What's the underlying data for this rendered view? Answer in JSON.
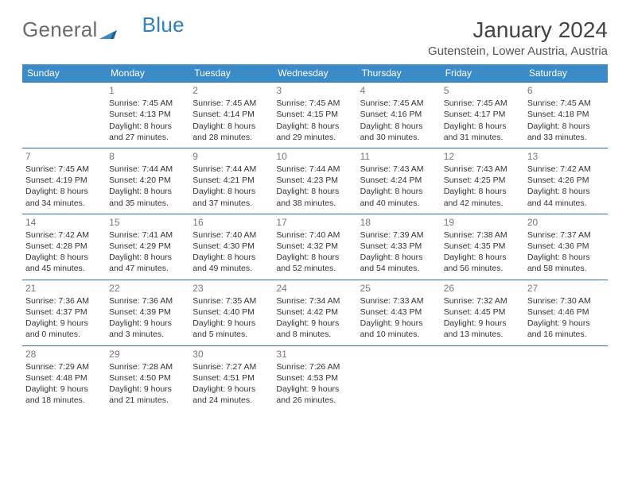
{
  "brand": {
    "word1": "General",
    "word2": "Blue",
    "color_gray": "#6b6b6b",
    "color_blue": "#2f7fbf",
    "mark_fill": "#1f5f96"
  },
  "title": {
    "month": "January 2024",
    "location": "Gutenstein, Lower Austria, Austria",
    "title_fontsize": 28,
    "location_fontsize": 15,
    "title_color": "#444444",
    "location_color": "#555555"
  },
  "calendar": {
    "header_bg": "#3b8bc9",
    "header_fg": "#ffffff",
    "row_border_color": "#2b6ea8",
    "cell_fontsize": 10.5,
    "daynum_color": "#777777",
    "days": [
      "Sunday",
      "Monday",
      "Tuesday",
      "Wednesday",
      "Thursday",
      "Friday",
      "Saturday"
    ],
    "weeks": [
      [
        {
          "num": "",
          "text": ""
        },
        {
          "num": "1",
          "text": "Sunrise: 7:45 AM\nSunset: 4:13 PM\nDaylight: 8 hours and 27 minutes."
        },
        {
          "num": "2",
          "text": "Sunrise: 7:45 AM\nSunset: 4:14 PM\nDaylight: 8 hours and 28 minutes."
        },
        {
          "num": "3",
          "text": "Sunrise: 7:45 AM\nSunset: 4:15 PM\nDaylight: 8 hours and 29 minutes."
        },
        {
          "num": "4",
          "text": "Sunrise: 7:45 AM\nSunset: 4:16 PM\nDaylight: 8 hours and 30 minutes."
        },
        {
          "num": "5",
          "text": "Sunrise: 7:45 AM\nSunset: 4:17 PM\nDaylight: 8 hours and 31 minutes."
        },
        {
          "num": "6",
          "text": "Sunrise: 7:45 AM\nSunset: 4:18 PM\nDaylight: 8 hours and 33 minutes."
        }
      ],
      [
        {
          "num": "7",
          "text": "Sunrise: 7:45 AM\nSunset: 4:19 PM\nDaylight: 8 hours and 34 minutes."
        },
        {
          "num": "8",
          "text": "Sunrise: 7:44 AM\nSunset: 4:20 PM\nDaylight: 8 hours and 35 minutes."
        },
        {
          "num": "9",
          "text": "Sunrise: 7:44 AM\nSunset: 4:21 PM\nDaylight: 8 hours and 37 minutes."
        },
        {
          "num": "10",
          "text": "Sunrise: 7:44 AM\nSunset: 4:23 PM\nDaylight: 8 hours and 38 minutes."
        },
        {
          "num": "11",
          "text": "Sunrise: 7:43 AM\nSunset: 4:24 PM\nDaylight: 8 hours and 40 minutes."
        },
        {
          "num": "12",
          "text": "Sunrise: 7:43 AM\nSunset: 4:25 PM\nDaylight: 8 hours and 42 minutes."
        },
        {
          "num": "13",
          "text": "Sunrise: 7:42 AM\nSunset: 4:26 PM\nDaylight: 8 hours and 44 minutes."
        }
      ],
      [
        {
          "num": "14",
          "text": "Sunrise: 7:42 AM\nSunset: 4:28 PM\nDaylight: 8 hours and 45 minutes."
        },
        {
          "num": "15",
          "text": "Sunrise: 7:41 AM\nSunset: 4:29 PM\nDaylight: 8 hours and 47 minutes."
        },
        {
          "num": "16",
          "text": "Sunrise: 7:40 AM\nSunset: 4:30 PM\nDaylight: 8 hours and 49 minutes."
        },
        {
          "num": "17",
          "text": "Sunrise: 7:40 AM\nSunset: 4:32 PM\nDaylight: 8 hours and 52 minutes."
        },
        {
          "num": "18",
          "text": "Sunrise: 7:39 AM\nSunset: 4:33 PM\nDaylight: 8 hours and 54 minutes."
        },
        {
          "num": "19",
          "text": "Sunrise: 7:38 AM\nSunset: 4:35 PM\nDaylight: 8 hours and 56 minutes."
        },
        {
          "num": "20",
          "text": "Sunrise: 7:37 AM\nSunset: 4:36 PM\nDaylight: 8 hours and 58 minutes."
        }
      ],
      [
        {
          "num": "21",
          "text": "Sunrise: 7:36 AM\nSunset: 4:37 PM\nDaylight: 9 hours and 0 minutes."
        },
        {
          "num": "22",
          "text": "Sunrise: 7:36 AM\nSunset: 4:39 PM\nDaylight: 9 hours and 3 minutes."
        },
        {
          "num": "23",
          "text": "Sunrise: 7:35 AM\nSunset: 4:40 PM\nDaylight: 9 hours and 5 minutes."
        },
        {
          "num": "24",
          "text": "Sunrise: 7:34 AM\nSunset: 4:42 PM\nDaylight: 9 hours and 8 minutes."
        },
        {
          "num": "25",
          "text": "Sunrise: 7:33 AM\nSunset: 4:43 PM\nDaylight: 9 hours and 10 minutes."
        },
        {
          "num": "26",
          "text": "Sunrise: 7:32 AM\nSunset: 4:45 PM\nDaylight: 9 hours and 13 minutes."
        },
        {
          "num": "27",
          "text": "Sunrise: 7:30 AM\nSunset: 4:46 PM\nDaylight: 9 hours and 16 minutes."
        }
      ],
      [
        {
          "num": "28",
          "text": "Sunrise: 7:29 AM\nSunset: 4:48 PM\nDaylight: 9 hours and 18 minutes."
        },
        {
          "num": "29",
          "text": "Sunrise: 7:28 AM\nSunset: 4:50 PM\nDaylight: 9 hours and 21 minutes."
        },
        {
          "num": "30",
          "text": "Sunrise: 7:27 AM\nSunset: 4:51 PM\nDaylight: 9 hours and 24 minutes."
        },
        {
          "num": "31",
          "text": "Sunrise: 7:26 AM\nSunset: 4:53 PM\nDaylight: 9 hours and 26 minutes."
        },
        {
          "num": "",
          "text": ""
        },
        {
          "num": "",
          "text": ""
        },
        {
          "num": "",
          "text": ""
        }
      ]
    ]
  }
}
